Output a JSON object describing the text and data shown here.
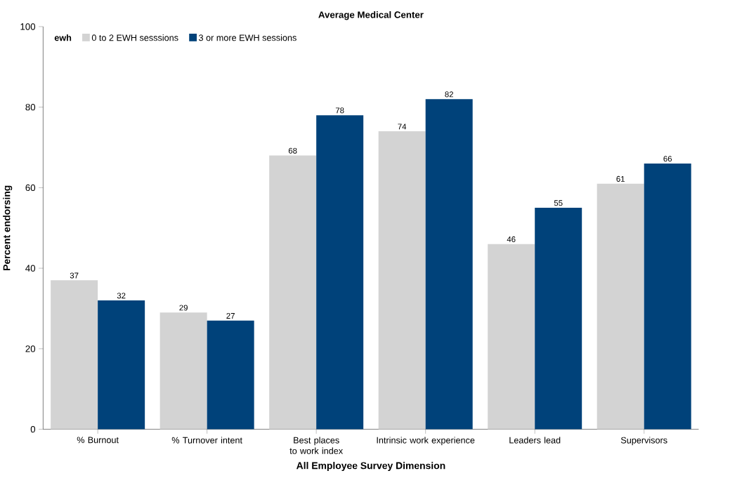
{
  "chart_data": {
    "type": "bar",
    "title": "Average Medical Center",
    "xlabel": "All Employee Survey Dimension",
    "ylabel": "Percent endorsing",
    "legend_title": "ewh",
    "categories": [
      "% Burnout",
      "% Turnover intent",
      "Best places to work index",
      "Intrinsic work experience",
      "Leaders lead",
      "Supervisors"
    ],
    "series": [
      {
        "name": "0 to 2 EWH sesssions",
        "color": "#d3d3d3",
        "values": [
          37,
          29,
          68,
          74,
          46,
          61
        ]
      },
      {
        "name": "3 or more EWH sessions",
        "color": "#00427a",
        "values": [
          32,
          27,
          78,
          82,
          55,
          66
        ]
      }
    ],
    "ylim": [
      0,
      100
    ],
    "yticks": [
      0,
      20,
      40,
      60,
      80,
      100
    ],
    "grid": false,
    "legend": "top left",
    "data_labels": true
  }
}
